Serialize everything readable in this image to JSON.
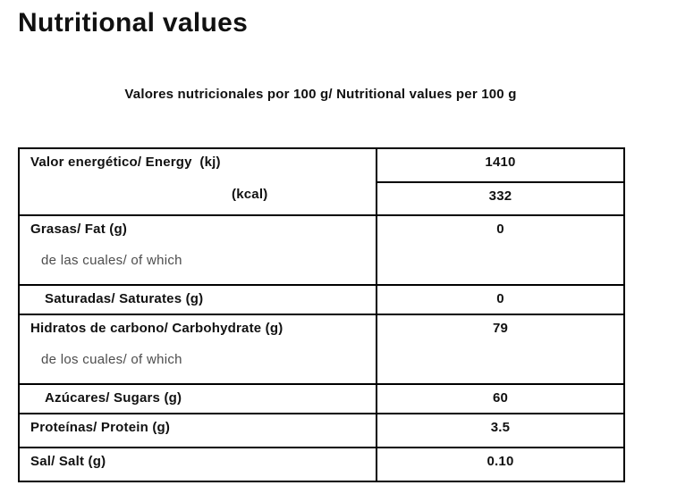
{
  "page": {
    "title": "Nutritional values",
    "subtitle": "Valores nutricionales por 100 g/ Nutritional values per 100 g",
    "background_color": "#ffffff",
    "text_color": "#111111",
    "muted_text_color": "#4d4d4d",
    "border_color": "#000000"
  },
  "table": {
    "energy": {
      "label": "Valor energético/ Energy  (kj)",
      "kcal_label": "(kcal)",
      "kj_value": "1410",
      "kcal_value": "332"
    },
    "fat": {
      "label": "Grasas/ Fat (g)",
      "sub_label": "de las cuales/ of which",
      "value": "0"
    },
    "saturates": {
      "label": "Saturadas/ Saturates (g)",
      "value": "0"
    },
    "carbohydrate": {
      "label": "Hidratos de carbono/ Carbohydrate (g)",
      "sub_label": "de los cuales/ of which",
      "value": "79"
    },
    "sugars": {
      "label": "Azúcares/ Sugars (g)",
      "value": "60"
    },
    "protein": {
      "label": "Proteínas/ Protein (g)",
      "value": "3.5"
    },
    "salt": {
      "label": "Sal/ Salt (g)",
      "value": "0.10"
    }
  }
}
